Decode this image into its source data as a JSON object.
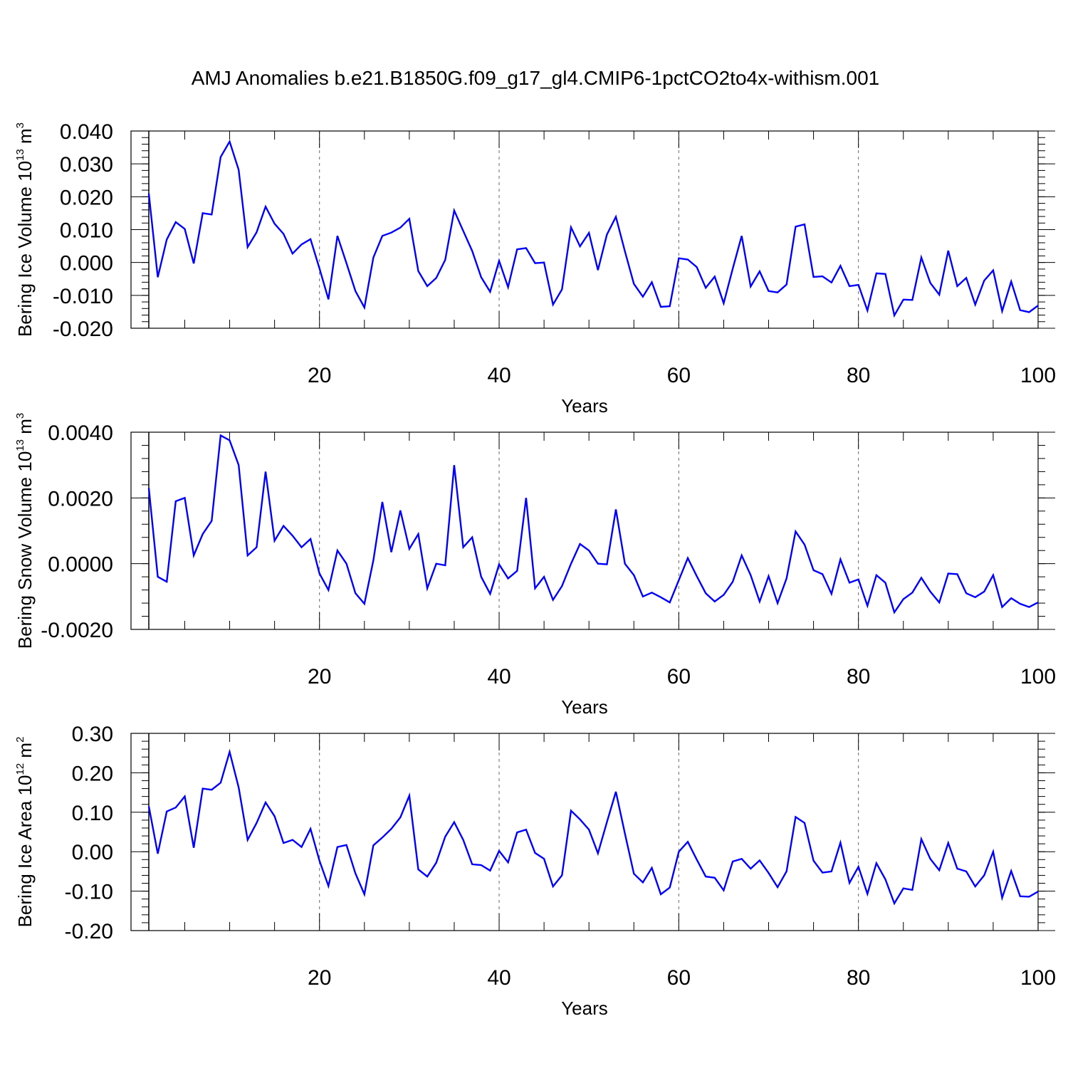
{
  "title": "AMJ Anomalies b.e21.B1850G.f09_g17_gl4.CMIP6-1pctCO2to4x-withism.001",
  "line_color": "#0000ff",
  "chart_data": [
    {
      "type": "line",
      "title": "AMJ Anomalies b.e21.B1850G.f09_g17_gl4.CMIP6-1pctCO2to4x-withism.001",
      "ylabel": {
        "text": "Bering Ice Volume 10",
        "exp": "13",
        "unit": " m",
        "unit_exp": "3"
      },
      "xlabel": "Years",
      "xlim": [
        1,
        100
      ],
      "ylim": [
        -0.02,
        0.04
      ],
      "xticks": [
        20,
        40,
        60,
        80,
        100
      ],
      "xtick_labels": [
        "20",
        "40",
        "60",
        "80",
        "100"
      ],
      "yticks": [
        -0.02,
        -0.01,
        0.0,
        0.01,
        0.02,
        0.03,
        0.04
      ],
      "ytick_labels": [
        "-0.020",
        "-0.010",
        "0.000",
        "0.010",
        "0.020",
        "0.030",
        "0.040"
      ],
      "y_minor_step": 0.002,
      "x": [
        1,
        2,
        3,
        4,
        5,
        6,
        7,
        8,
        9,
        10,
        11,
        12,
        13,
        14,
        15,
        16,
        17,
        18,
        19,
        20,
        21,
        22,
        23,
        24,
        25,
        26,
        27,
        28,
        29,
        30,
        31,
        32,
        33,
        34,
        35,
        36,
        37,
        38,
        39,
        40,
        41,
        42,
        43,
        44,
        45,
        46,
        47,
        48,
        49,
        50,
        51,
        52,
        53,
        54,
        55,
        56,
        57,
        58,
        59,
        60,
        61,
        62,
        63,
        64,
        65,
        66,
        67,
        68,
        69,
        70,
        71,
        72,
        73,
        74,
        75,
        76,
        77,
        78,
        79,
        80,
        81,
        82,
        83,
        84,
        85,
        86,
        87,
        88,
        89,
        90,
        91,
        92,
        93,
        94,
        95,
        96,
        97,
        98,
        99,
        100
      ],
      "series": [
        {
          "name": "Bering Ice Volume",
          "values": [
            0.021,
            -0.0045,
            0.007,
            0.0123,
            0.0102,
            -0.0003,
            0.015,
            0.0146,
            0.0321,
            0.0368,
            0.0282,
            0.0047,
            0.0092,
            0.017,
            0.0118,
            0.0087,
            0.0027,
            0.0055,
            0.0071,
            -0.0018,
            -0.0112,
            0.0081,
            -0.0002,
            -0.0087,
            -0.0137,
            0.0015,
            0.0081,
            0.0091,
            0.0106,
            0.0133,
            -0.0026,
            -0.0072,
            -0.0047,
            0.0008,
            0.0158,
            0.0096,
            0.0035,
            -0.0045,
            -0.0089,
            0.0005,
            -0.0075,
            0.004,
            0.0044,
            -0.0002,
            0.0,
            -0.0128,
            -0.0082,
            0.0107,
            0.0049,
            0.009,
            -0.0023,
            0.0085,
            0.0139,
            0.0034,
            -0.0065,
            -0.0104,
            -0.006,
            -0.0135,
            -0.0133,
            0.0013,
            0.0009,
            -0.0014,
            -0.0077,
            -0.0043,
            -0.0124,
            -0.0019,
            0.0081,
            -0.0073,
            -0.0027,
            -0.0087,
            -0.0091,
            -0.0067,
            0.0109,
            0.0116,
            -0.0044,
            -0.0042,
            -0.0061,
            -0.001,
            -0.0072,
            -0.0068,
            -0.0146,
            -0.0033,
            -0.0035,
            -0.0161,
            -0.0113,
            -0.0114,
            0.0015,
            -0.0062,
            -0.0098,
            0.0036,
            -0.0072,
            -0.0047,
            -0.0128,
            -0.0055,
            -0.0024,
            -0.0148,
            -0.0058,
            -0.0145,
            -0.0151,
            -0.0131
          ]
        }
      ]
    },
    {
      "type": "line",
      "ylabel": {
        "text": "Bering Snow Volume 10",
        "exp": "13",
        "unit": " m",
        "unit_exp": "3"
      },
      "xlabel": "Years",
      "xlim": [
        1,
        100
      ],
      "ylim": [
        -0.002,
        0.004
      ],
      "xticks": [
        20,
        40,
        60,
        80,
        100
      ],
      "xtick_labels": [
        "20",
        "40",
        "60",
        "80",
        "100"
      ],
      "yticks": [
        -0.002,
        0.0,
        0.002,
        0.004
      ],
      "ytick_labels": [
        "-0.0020",
        "0.0000",
        "0.0020",
        "0.0040"
      ],
      "y_minor_step": 0.0004,
      "x": [
        1,
        2,
        3,
        4,
        5,
        6,
        7,
        8,
        9,
        10,
        11,
        12,
        13,
        14,
        15,
        16,
        17,
        18,
        19,
        20,
        21,
        22,
        23,
        24,
        25,
        26,
        27,
        28,
        29,
        30,
        31,
        32,
        33,
        34,
        35,
        36,
        37,
        38,
        39,
        40,
        41,
        42,
        43,
        44,
        45,
        46,
        47,
        48,
        49,
        50,
        51,
        52,
        53,
        54,
        55,
        56,
        57,
        58,
        59,
        60,
        61,
        62,
        63,
        64,
        65,
        66,
        67,
        68,
        69,
        70,
        71,
        72,
        73,
        74,
        75,
        76,
        77,
        78,
        79,
        80,
        81,
        82,
        83,
        84,
        85,
        86,
        87,
        88,
        89,
        90,
        91,
        92,
        93,
        94,
        95,
        96,
        97,
        98,
        99,
        100
      ],
      "series": [
        {
          "name": "Bering Snow Volume",
          "values": [
            0.0023,
            -0.0004,
            -0.00055,
            0.0019,
            0.002,
            0.00025,
            0.0009,
            0.0013,
            0.0039,
            0.00375,
            0.003,
            0.00025,
            0.0005,
            0.0028,
            0.0007,
            0.00115,
            0.00085,
            0.0005,
            0.00075,
            -0.0003,
            -0.0008,
            0.0004,
            0.0,
            -0.0009,
            -0.00122,
            0.0001,
            0.00188,
            0.00035,
            0.00162,
            0.00045,
            0.0009,
            -0.00075,
            0.0,
            -5e-05,
            0.003,
            0.0005,
            0.0008,
            -0.0004,
            -0.00092,
            -2e-05,
            -0.00045,
            -0.00022,
            0.002,
            -0.00075,
            -0.0004,
            -0.0011,
            -0.00068,
            0.0,
            0.0006,
            0.0004,
            0.0,
            -2e-05,
            0.00165,
            0.0,
            -0.00035,
            -0.001,
            -0.00088,
            -0.00102,
            -0.00118,
            -0.0005,
            0.00017,
            -0.00038,
            -0.0009,
            -0.00115,
            -0.00095,
            -0.00055,
            0.00025,
            -0.00035,
            -0.00115,
            -0.00038,
            -0.0012,
            -0.00045,
            0.00098,
            0.00058,
            -0.0002,
            -0.00032,
            -0.00092,
            0.00013,
            -0.00058,
            -0.00048,
            -0.00128,
            -0.00035,
            -0.00058,
            -0.00148,
            -0.00108,
            -0.00088,
            -0.00043,
            -0.00085,
            -0.00118,
            -0.0003,
            -0.00032,
            -0.0009,
            -0.00102,
            -0.00085,
            -0.00035,
            -0.00132,
            -0.00105,
            -0.00122,
            -0.00132,
            -0.00118
          ]
        }
      ]
    },
    {
      "type": "line",
      "ylabel": {
        "text": "Bering Ice Area 10",
        "exp": "12",
        "unit": " m",
        "unit_exp": "2"
      },
      "xlabel": "Years",
      "xlim": [
        1,
        100
      ],
      "ylim": [
        -0.2,
        0.3
      ],
      "xticks": [
        20,
        40,
        60,
        80,
        100
      ],
      "xtick_labels": [
        "20",
        "40",
        "60",
        "80",
        "100"
      ],
      "yticks": [
        -0.2,
        -0.1,
        0.0,
        0.1,
        0.2,
        0.3
      ],
      "ytick_labels": [
        "-0.20",
        "-0.10",
        "0.00",
        "0.10",
        "0.20",
        "0.30"
      ],
      "y_minor_step": 0.02,
      "x": [
        1,
        2,
        3,
        4,
        5,
        6,
        7,
        8,
        9,
        10,
        11,
        12,
        13,
        14,
        15,
        16,
        17,
        18,
        19,
        20,
        21,
        22,
        23,
        24,
        25,
        26,
        27,
        28,
        29,
        30,
        31,
        32,
        33,
        34,
        35,
        36,
        37,
        38,
        39,
        40,
        41,
        42,
        43,
        44,
        45,
        46,
        47,
        48,
        49,
        50,
        51,
        52,
        53,
        54,
        55,
        56,
        57,
        58,
        59,
        60,
        61,
        62,
        63,
        64,
        65,
        66,
        67,
        68,
        69,
        70,
        71,
        72,
        73,
        74,
        75,
        76,
        77,
        78,
        79,
        80,
        81,
        82,
        83,
        84,
        85,
        86,
        87,
        88,
        89,
        90,
        91,
        92,
        93,
        94,
        95,
        96,
        97,
        98,
        99,
        100
      ],
      "series": [
        {
          "name": "Bering Ice Area",
          "values": [
            0.115,
            -0.005,
            0.102,
            0.112,
            0.14,
            0.01,
            0.16,
            0.157,
            0.175,
            0.253,
            0.163,
            0.03,
            0.073,
            0.125,
            0.09,
            0.022,
            0.03,
            0.012,
            0.058,
            -0.023,
            -0.087,
            0.012,
            0.017,
            -0.055,
            -0.108,
            0.016,
            0.036,
            0.058,
            0.087,
            0.142,
            -0.045,
            -0.063,
            -0.028,
            0.038,
            0.075,
            0.03,
            -0.032,
            -0.034,
            -0.048,
            0.002,
            -0.027,
            0.049,
            0.056,
            -0.003,
            -0.018,
            -0.088,
            -0.06,
            0.104,
            0.082,
            0.056,
            -0.004,
            0.075,
            0.152,
            0.046,
            -0.056,
            -0.078,
            -0.041,
            -0.108,
            -0.091,
            0.0,
            0.025,
            -0.02,
            -0.063,
            -0.066,
            -0.098,
            -0.025,
            -0.018,
            -0.043,
            -0.022,
            -0.054,
            -0.09,
            -0.05,
            0.088,
            0.073,
            -0.023,
            -0.053,
            -0.05,
            0.023,
            -0.079,
            -0.038,
            -0.107,
            -0.029,
            -0.07,
            -0.131,
            -0.093,
            -0.097,
            0.032,
            -0.018,
            -0.047,
            0.022,
            -0.043,
            -0.05,
            -0.088,
            -0.06,
            0.0,
            -0.117,
            -0.049,
            -0.113,
            -0.114,
            -0.101
          ]
        }
      ]
    }
  ]
}
